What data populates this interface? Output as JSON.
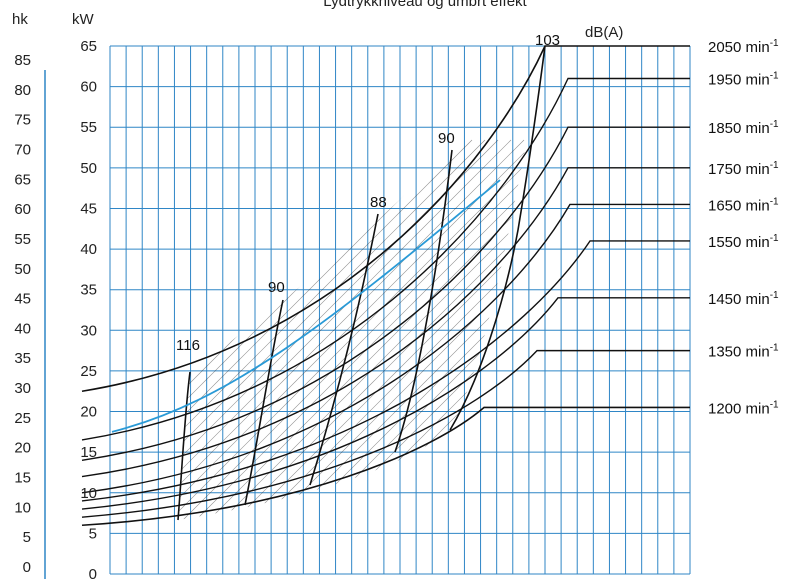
{
  "chart_data": {
    "type": "line",
    "title": "Lydtrykkniveau og umbrt effekt",
    "left_axis": {
      "label": "hk",
      "ticks": [
        0,
        5,
        10,
        15,
        20,
        25,
        30,
        35,
        40,
        45,
        50,
        55,
        60,
        65,
        70,
        75,
        80,
        85
      ]
    },
    "y_axis": {
      "label": "kW",
      "ticks": [
        0,
        5,
        10,
        15,
        20,
        25,
        30,
        35,
        40,
        45,
        50,
        55,
        60,
        65
      ],
      "ylim": [
        0,
        65
      ]
    },
    "db_unit": "dB(A)",
    "grid": true,
    "colors": {
      "grid": "#2f86c6",
      "curves": "#111111",
      "highlight": "#2a9ad6",
      "hatch": "#333333"
    },
    "rpm_curves": [
      {
        "label": "2050 min-1",
        "label_text": "2050 min",
        "sup": "-1",
        "start_kw": 22.5,
        "plateau_kw": 65
      },
      {
        "label": "1950 min-1",
        "label_text": "1950 min",
        "sup": "-1",
        "start_kw": 16.5,
        "plateau_kw": 61
      },
      {
        "label": "1850 min-1",
        "label_text": "1850 min",
        "sup": "-1",
        "start_kw": 14.0,
        "plateau_kw": 55
      },
      {
        "label": "1750 min-1",
        "label_text": "1750 min",
        "sup": "-1",
        "start_kw": 12.0,
        "plateau_kw": 50
      },
      {
        "label": "1650 min-1",
        "label_text": "1650 min",
        "sup": "-1",
        "start_kw": 10.0,
        "plateau_kw": 45.5
      },
      {
        "label": "1550 min-1",
        "label_text": "1550 min",
        "sup": "-1",
        "start_kw": 9.0,
        "plateau_kw": 41
      },
      {
        "label": "1450 min-1",
        "label_text": "1450 min",
        "sup": "-1",
        "start_kw": 8.0,
        "plateau_kw": 34
      },
      {
        "label": "1350 min-1",
        "label_text": "1350 min",
        "sup": "-1",
        "start_kw": 7.0,
        "plateau_kw": 27.5
      },
      {
        "label": "1200 min-1",
        "label_text": "1200 min",
        "sup": "-1",
        "start_kw": 6.0,
        "plateau_kw": 20.5
      }
    ],
    "highlight_curve": {
      "start_kw": 17.5,
      "end_kw": 48.5
    },
    "db_lines": [
      {
        "label": "116"
      },
      {
        "label": "90"
      },
      {
        "label": "88"
      },
      {
        "label": "90"
      },
      {
        "label": "103"
      }
    ]
  }
}
